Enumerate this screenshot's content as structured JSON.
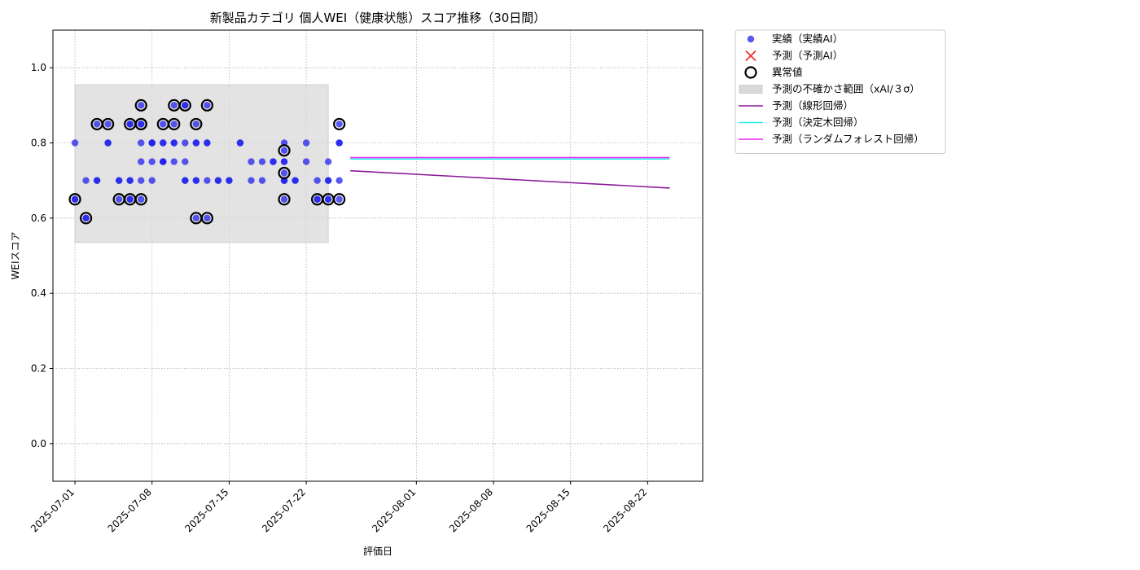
{
  "chart_data": {
    "type": "scatter",
    "title": "新製品カテゴリ 個人WEI（健康状態）スコア推移（30日間）",
    "xlabel": "評価日",
    "ylabel": "WEIスコア",
    "xlim": [
      "2025-06-29",
      "2025-08-27"
    ],
    "ylim": [
      -0.1,
      1.1
    ],
    "y_ticks": [
      0.0,
      0.2,
      0.4,
      0.6,
      0.8,
      1.0
    ],
    "x_ticks": [
      "2025-07-01",
      "2025-07-08",
      "2025-07-15",
      "2025-07-22",
      "2025-08-01",
      "2025-08-08",
      "2025-08-15",
      "2025-08-22"
    ],
    "grid": true,
    "legend_position": "outside-top-right",
    "colors": {
      "actual": "#2222ee",
      "anomaly_edge": "#000000",
      "band": "#d9d9d9",
      "linear": "#8b1a9a",
      "tree": "#22eeee",
      "forest": "#ee22ee",
      "predicted_marker": "#ee3333"
    },
    "legend": [
      {
        "key": "actual",
        "label": "実績（実績AI）"
      },
      {
        "key": "predicted",
        "label": "予測（予測AI）"
      },
      {
        "key": "anomaly",
        "label": "異常値"
      },
      {
        "key": "band",
        "label": "予測の不確かさ範囲（xAI/３σ）"
      },
      {
        "key": "linear",
        "label": "予測（線形回帰）"
      },
      {
        "key": "tree",
        "label": "予測（決定木回帰）"
      },
      {
        "key": "forest",
        "label": "予測（ランダムフォレスト回帰）"
      }
    ],
    "uncertainty_band": {
      "x_start": "2025-07-01",
      "x_end": "2025-07-24",
      "y_low": 0.535,
      "y_high": 0.955
    },
    "series_actual": [
      {
        "x": "2025-07-01",
        "y": 0.65
      },
      {
        "x": "2025-07-01",
        "y": 0.65
      },
      {
        "x": "2025-07-01",
        "y": 0.8
      },
      {
        "x": "2025-07-02",
        "y": 0.6
      },
      {
        "x": "2025-07-02",
        "y": 0.7
      },
      {
        "x": "2025-07-02",
        "y": 0.6
      },
      {
        "x": "2025-07-03",
        "y": 0.7
      },
      {
        "x": "2025-07-03",
        "y": 0.85
      },
      {
        "x": "2025-07-03",
        "y": 0.7
      },
      {
        "x": "2025-07-04",
        "y": 0.8
      },
      {
        "x": "2025-07-04",
        "y": 0.85
      },
      {
        "x": "2025-07-04",
        "y": 0.8
      },
      {
        "x": "2025-07-05",
        "y": 0.7
      },
      {
        "x": "2025-07-05",
        "y": 0.65
      },
      {
        "x": "2025-07-05",
        "y": 0.7
      },
      {
        "x": "2025-07-06",
        "y": 0.7
      },
      {
        "x": "2025-07-06",
        "y": 0.85
      },
      {
        "x": "2025-07-06",
        "y": 0.65
      },
      {
        "x": "2025-07-06",
        "y": 0.65
      },
      {
        "x": "2025-07-06",
        "y": 0.7
      },
      {
        "x": "2025-07-06",
        "y": 0.85
      },
      {
        "x": "2025-07-07",
        "y": 0.65
      },
      {
        "x": "2025-07-07",
        "y": 0.8
      },
      {
        "x": "2025-07-07",
        "y": 0.9
      },
      {
        "x": "2025-07-07",
        "y": 0.85
      },
      {
        "x": "2025-07-07",
        "y": 0.85
      },
      {
        "x": "2025-07-07",
        "y": 0.7
      },
      {
        "x": "2025-07-07",
        "y": 0.75
      },
      {
        "x": "2025-07-08",
        "y": 0.75
      },
      {
        "x": "2025-07-08",
        "y": 0.8
      },
      {
        "x": "2025-07-08",
        "y": 0.8
      },
      {
        "x": "2025-07-08",
        "y": 0.8
      },
      {
        "x": "2025-07-08",
        "y": 0.7
      },
      {
        "x": "2025-07-09",
        "y": 0.75
      },
      {
        "x": "2025-07-09",
        "y": 0.8
      },
      {
        "x": "2025-07-09",
        "y": 0.75
      },
      {
        "x": "2025-07-09",
        "y": 0.75
      },
      {
        "x": "2025-07-09",
        "y": 0.8
      },
      {
        "x": "2025-07-09",
        "y": 0.85
      },
      {
        "x": "2025-07-10",
        "y": 0.8
      },
      {
        "x": "2025-07-10",
        "y": 0.85
      },
      {
        "x": "2025-07-10",
        "y": 0.8
      },
      {
        "x": "2025-07-10",
        "y": 0.9
      },
      {
        "x": "2025-07-10",
        "y": 0.75
      },
      {
        "x": "2025-07-11",
        "y": 0.7
      },
      {
        "x": "2025-07-11",
        "y": 0.9
      },
      {
        "x": "2025-07-11",
        "y": 0.7
      },
      {
        "x": "2025-07-11",
        "y": 0.8
      },
      {
        "x": "2025-07-11",
        "y": 0.9
      },
      {
        "x": "2025-07-11",
        "y": 0.75
      },
      {
        "x": "2025-07-12",
        "y": 0.7
      },
      {
        "x": "2025-07-12",
        "y": 0.6
      },
      {
        "x": "2025-07-12",
        "y": 0.7
      },
      {
        "x": "2025-07-12",
        "y": 0.85
      },
      {
        "x": "2025-07-12",
        "y": 0.8
      },
      {
        "x": "2025-07-12",
        "y": 0.8
      },
      {
        "x": "2025-07-13",
        "y": 0.8
      },
      {
        "x": "2025-07-13",
        "y": 0.9
      },
      {
        "x": "2025-07-13",
        "y": 0.8
      },
      {
        "x": "2025-07-13",
        "y": 0.6
      },
      {
        "x": "2025-07-13",
        "y": 0.7
      },
      {
        "x": "2025-07-14",
        "y": 0.7
      },
      {
        "x": "2025-07-14",
        "y": 0.7
      },
      {
        "x": "2025-07-15",
        "y": 0.7
      },
      {
        "x": "2025-07-15",
        "y": 0.7
      },
      {
        "x": "2025-07-16",
        "y": 0.8
      },
      {
        "x": "2025-07-16",
        "y": 0.8
      },
      {
        "x": "2025-07-17",
        "y": 0.75
      },
      {
        "x": "2025-07-17",
        "y": 0.7
      },
      {
        "x": "2025-07-18",
        "y": 0.75
      },
      {
        "x": "2025-07-18",
        "y": 0.7
      },
      {
        "x": "2025-07-19",
        "y": 0.75
      },
      {
        "x": "2025-07-19",
        "y": 0.75
      },
      {
        "x": "2025-07-20",
        "y": 0.7
      },
      {
        "x": "2025-07-20",
        "y": 0.8
      },
      {
        "x": "2025-07-20",
        "y": 0.78
      },
      {
        "x": "2025-07-20",
        "y": 0.72
      },
      {
        "x": "2025-07-20",
        "y": 0.75
      },
      {
        "x": "2025-07-20",
        "y": 0.65
      },
      {
        "x": "2025-07-20",
        "y": 0.7
      },
      {
        "x": "2025-07-20",
        "y": 0.75
      },
      {
        "x": "2025-07-20",
        "y": 0.7
      },
      {
        "x": "2025-07-21",
        "y": 0.7
      },
      {
        "x": "2025-07-21",
        "y": 0.7
      },
      {
        "x": "2025-07-22",
        "y": 0.8
      },
      {
        "x": "2025-07-22",
        "y": 0.75
      },
      {
        "x": "2025-07-23",
        "y": 0.7
      },
      {
        "x": "2025-07-23",
        "y": 0.65
      },
      {
        "x": "2025-07-23",
        "y": 0.65
      },
      {
        "x": "2025-07-24",
        "y": 0.75
      },
      {
        "x": "2025-07-24",
        "y": 0.7
      },
      {
        "x": "2025-07-24",
        "y": 0.65
      },
      {
        "x": "2025-07-24",
        "y": 0.65
      },
      {
        "x": "2025-07-24",
        "y": 0.7
      },
      {
        "x": "2025-07-25",
        "y": 0.7
      },
      {
        "x": "2025-07-25",
        "y": 0.65
      },
      {
        "x": "2025-07-25",
        "y": 0.85
      },
      {
        "x": "2025-07-25",
        "y": 0.8
      },
      {
        "x": "2025-07-25",
        "y": 0.8
      }
    ],
    "series_anomaly": [
      {
        "x": "2025-07-01",
        "y": 0.65
      },
      {
        "x": "2025-07-02",
        "y": 0.6
      },
      {
        "x": "2025-07-03",
        "y": 0.85
      },
      {
        "x": "2025-07-04",
        "y": 0.85
      },
      {
        "x": "2025-07-05",
        "y": 0.65
      },
      {
        "x": "2025-07-06",
        "y": 0.65
      },
      {
        "x": "2025-07-06",
        "y": 0.85
      },
      {
        "x": "2025-07-07",
        "y": 0.65
      },
      {
        "x": "2025-07-07",
        "y": 0.85
      },
      {
        "x": "2025-07-07",
        "y": 0.9
      },
      {
        "x": "2025-07-07",
        "y": 0.85
      },
      {
        "x": "2025-07-09",
        "y": 0.85
      },
      {
        "x": "2025-07-10",
        "y": 0.85
      },
      {
        "x": "2025-07-10",
        "y": 0.9
      },
      {
        "x": "2025-07-11",
        "y": 0.9
      },
      {
        "x": "2025-07-12",
        "y": 0.6
      },
      {
        "x": "2025-07-12",
        "y": 0.85
      },
      {
        "x": "2025-07-13",
        "y": 0.9
      },
      {
        "x": "2025-07-13",
        "y": 0.6
      },
      {
        "x": "2025-07-20",
        "y": 0.78
      },
      {
        "x": "2025-07-20",
        "y": 0.72
      },
      {
        "x": "2025-07-20",
        "y": 0.65
      },
      {
        "x": "2025-07-23",
        "y": 0.65
      },
      {
        "x": "2025-07-24",
        "y": 0.65
      },
      {
        "x": "2025-07-25",
        "y": 0.65
      },
      {
        "x": "2025-07-25",
        "y": 0.85
      }
    ],
    "series_linear": [
      {
        "x": "2025-07-26",
        "y": 0.726
      },
      {
        "x": "2025-08-24",
        "y": 0.68
      }
    ],
    "series_tree": [
      {
        "x": "2025-07-26",
        "y": 0.757
      },
      {
        "x": "2025-08-24",
        "y": 0.757
      }
    ],
    "series_forest": [
      {
        "x": "2025-07-26",
        "y": 0.761
      },
      {
        "x": "2025-08-24",
        "y": 0.761
      }
    ]
  }
}
